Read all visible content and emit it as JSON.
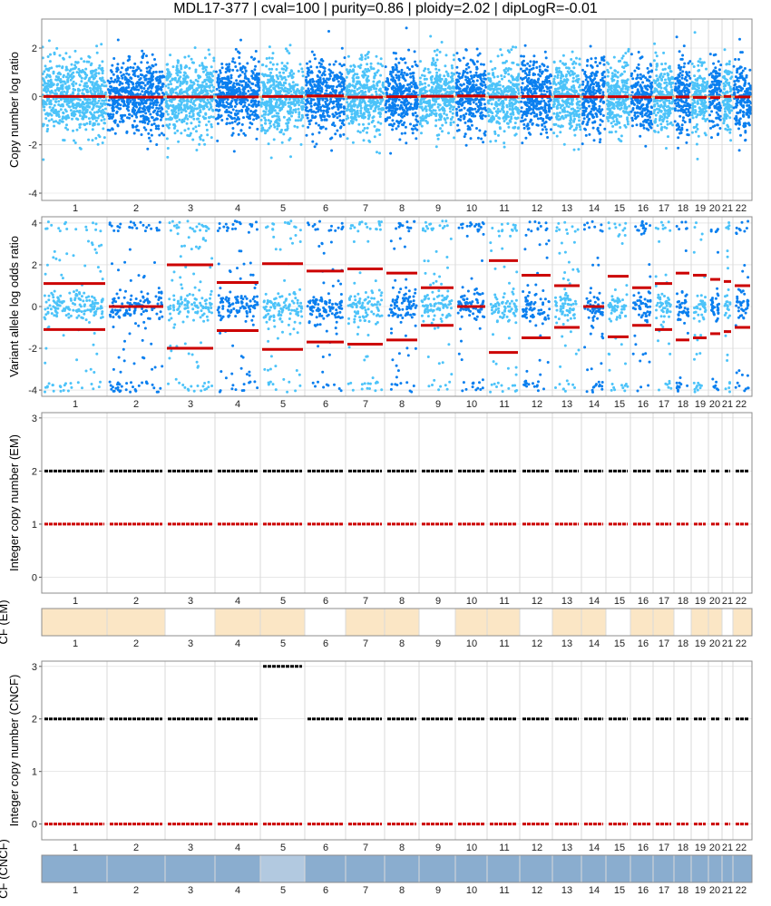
{
  "title": "MDL17-377 | cval=100 | purity=0.86 | ploidy=2.02 | dipLogR=-0.01",
  "colors": {
    "light_blue": "#4cc3f9",
    "dark_blue": "#0a7fef",
    "segment_red": "#cc0000",
    "diploid_orange": "#f4a460",
    "cf_low": "#fbe6c5",
    "cf_mid": "#6e9ec6",
    "cf_bar_blue": "#8aadcf",
    "cf_bar_light": "#b2c9e0",
    "grid": "#d9d9d9",
    "panel_border": "#8c8c8c"
  },
  "chromosomes": [
    "1",
    "2",
    "3",
    "4",
    "5",
    "6",
    "7",
    "8",
    "9",
    "10",
    "11",
    "12",
    "13",
    "14",
    "15",
    "16",
    "17",
    "18",
    "19",
    "20",
    "21",
    "22"
  ],
  "chart_data": [
    {
      "type": "scatter",
      "name": "copy_number_log_ratio",
      "ylabel": "Copy number log ratio",
      "yticks": [
        -4,
        -2,
        0,
        2
      ],
      "ylim": [
        -4.3,
        3.2
      ],
      "diploid_line": -0.01,
      "segment_cnlr": [
        0.0,
        -0.03,
        -0.02,
        -0.02,
        0.0,
        0.02,
        -0.03,
        -0.01,
        0.01,
        0.02,
        -0.02,
        0.0,
        0.0,
        -0.02,
        -0.01,
        -0.03,
        -0.05,
        -0.02,
        -0.04,
        -0.05,
        0.0,
        -0.02
      ]
    },
    {
      "type": "scatter",
      "name": "variant_allele_log_odds",
      "ylabel": "Variant allele log odds ratio",
      "yticks": [
        -4,
        -2,
        0,
        2,
        4
      ],
      "ylim": [
        -4.3,
        4.3
      ],
      "segment_valor": [
        1.1,
        0.0,
        2.0,
        1.15,
        2.05,
        1.7,
        1.8,
        1.6,
        0.9,
        0.0,
        2.2,
        1.5,
        1.0,
        0.0,
        1.45,
        0.9,
        1.1,
        1.6,
        1.5,
        1.3,
        1.2,
        1.0
      ]
    },
    {
      "type": "scatter",
      "name": "integer_copy_number_em",
      "ylabel": "Integer copy number (EM)",
      "yticks": [
        0,
        1,
        2,
        3
      ],
      "ylim": [
        -0.3,
        3.1
      ],
      "total_copy_number": [
        2,
        2,
        2,
        2,
        2,
        2,
        2,
        2,
        2,
        2,
        2,
        2,
        2,
        2,
        2,
        2,
        2,
        2,
        2,
        2,
        2,
        2
      ],
      "minor_copy_number": [
        1,
        1,
        1,
        1,
        1,
        1,
        1,
        1,
        1,
        1,
        1,
        1,
        1,
        1,
        1,
        1,
        1,
        1,
        1,
        1,
        1,
        1
      ]
    },
    {
      "type": "heatmap",
      "name": "cellular_fraction_em",
      "ylabel": "CF (EM)"
    },
    {
      "type": "scatter",
      "name": "integer_copy_number_cncf",
      "ylabel": "Integer copy number (CNCF)",
      "yticks": [
        0,
        1,
        2,
        3
      ],
      "ylim": [
        -0.3,
        3.1
      ],
      "total_copy_number": [
        2,
        2,
        2,
        2,
        3,
        2,
        2,
        2,
        2,
        2,
        2,
        2,
        2,
        2,
        2,
        2,
        2,
        2,
        2,
        2,
        2,
        2
      ],
      "minor_copy_number": [
        0,
        0,
        0,
        0,
        0,
        0,
        0,
        0,
        0,
        0,
        0,
        0,
        0,
        0,
        0,
        0,
        0,
        0,
        0,
        0,
        0,
        0
      ]
    },
    {
      "type": "heatmap",
      "name": "cellular_fraction_cncf",
      "ylabel": "CF (CNCF)"
    }
  ]
}
